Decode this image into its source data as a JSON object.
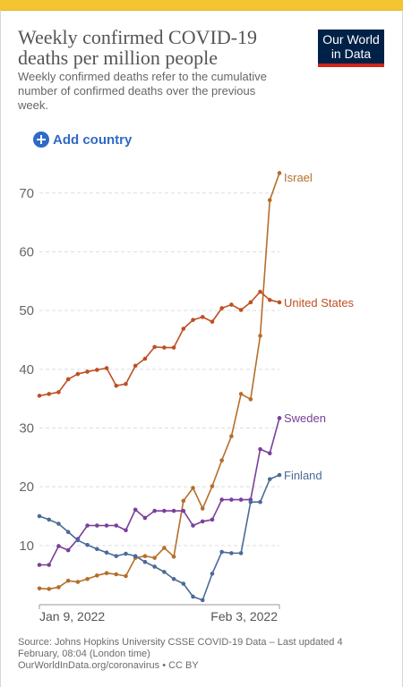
{
  "header": {
    "title": "Weekly confirmed COVID-19 deaths per million people",
    "subtitle": "Weekly confirmed deaths refer to the cumulative number of confirmed deaths over the previous week.",
    "logo_line1": "Our World",
    "logo_line2": "in Data",
    "add_country_label": "Add country"
  },
  "footer": {
    "source": "Source: Johns Hopkins University CSSE COVID-19 Data – Last updated 4 February, 08:04 (London time)",
    "link": "OurWorldInData.org/coronavirus • CC BY"
  },
  "colors": {
    "brand_navy": "#002147",
    "brand_red": "#ce261e",
    "link_blue": "#2f6ac6",
    "top_bar": "#f4c531"
  },
  "chart_data": {
    "type": "line",
    "x_start": "2022-01-03",
    "x_end": "2022-02-03",
    "xticks": [
      "Jan 9, 2022",
      "Feb 3, 2022"
    ],
    "yticks": [
      10,
      20,
      30,
      40,
      50,
      60,
      70
    ],
    "ylim": [
      2,
      74
    ],
    "grid": true,
    "legend": "line-end labels",
    "series": [
      {
        "name": "Israel",
        "color": "#b56e2a",
        "values": [
          2.7,
          2.6,
          2.9,
          4.0,
          3.8,
          4.3,
          4.9,
          5.3,
          5.1,
          4.8,
          7.9,
          8.2,
          7.9,
          9.6,
          8.1,
          17.6,
          19.8,
          16.3,
          20.1,
          24.5,
          28.6,
          35.8,
          34.9,
          45.7,
          68.8,
          73.4
        ]
      },
      {
        "name": "United States",
        "color": "#bd4f22",
        "values": [
          35.5,
          35.8,
          36.1,
          38.3,
          39.2,
          39.6,
          39.9,
          40.2,
          37.2,
          37.5,
          40.6,
          41.8,
          43.8,
          43.7,
          43.7,
          46.9,
          48.4,
          48.9,
          48.1,
          50.4,
          51.0,
          50.1,
          51.4,
          53.2,
          51.8,
          51.4
        ]
      },
      {
        "name": "Sweden",
        "color": "#7a3f9a",
        "values": [
          6.7,
          6.7,
          9.9,
          9.2,
          11.1,
          13.4,
          13.4,
          13.4,
          13.4,
          12.6,
          16.1,
          14.7,
          15.9,
          15.9,
          15.9,
          15.9,
          13.4,
          14.1,
          14.4,
          17.8,
          17.8,
          17.8,
          17.8,
          26.4,
          25.7,
          31.7
        ]
      },
      {
        "name": "Finland",
        "color": "#4b6a98",
        "values": [
          15.0,
          14.4,
          13.7,
          12.3,
          10.9,
          10.1,
          9.4,
          8.8,
          8.2,
          8.6,
          8.2,
          7.2,
          6.4,
          5.5,
          4.3,
          3.5,
          1.3,
          0.7,
          5.2,
          8.9,
          8.7,
          8.7,
          17.4,
          17.4,
          21.3,
          22.0
        ]
      }
    ]
  }
}
